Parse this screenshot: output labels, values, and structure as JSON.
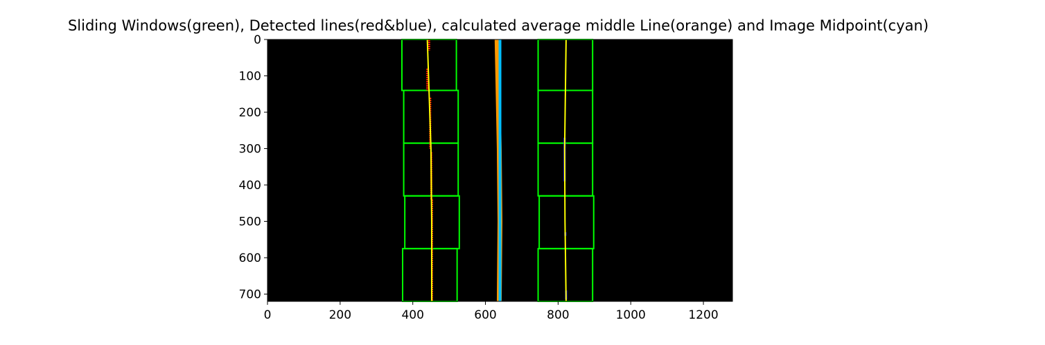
{
  "chart_data": {
    "type": "image",
    "title": "Sliding Windows(green), Detected lines(red&blue), calculated average middle Line(orange) and Image Midpoint(cyan)",
    "xlabel": "",
    "ylabel": "",
    "xlim": [
      0,
      1280
    ],
    "ylim": [
      720,
      0
    ],
    "x_ticks": [
      0,
      200,
      400,
      600,
      800,
      1000,
      1200
    ],
    "y_ticks": [
      0,
      100,
      200,
      300,
      400,
      500,
      600,
      700
    ],
    "grid": false,
    "background": "#000000",
    "colors": {
      "windows": "#00ff00",
      "left_pixels": "#ff2200",
      "right_pixels": "#2222ff",
      "fit_lines": "#ffff00",
      "middle_line": "#ff9900",
      "image_midpoint": "#00bfff"
    },
    "sliding_windows": [
      {
        "x0": 370,
        "x1": 520,
        "y0": 0,
        "y1": 140
      },
      {
        "x0": 375,
        "x1": 525,
        "y0": 140,
        "y1": 285
      },
      {
        "x0": 375,
        "x1": 525,
        "y0": 285,
        "y1": 430
      },
      {
        "x0": 378,
        "x1": 528,
        "y0": 430,
        "y1": 575
      },
      {
        "x0": 372,
        "x1": 522,
        "y0": 575,
        "y1": 720
      },
      {
        "x0": 745,
        "x1": 895,
        "y0": 0,
        "y1": 140
      },
      {
        "x0": 745,
        "x1": 895,
        "y0": 140,
        "y1": 285
      },
      {
        "x0": 745,
        "x1": 895,
        "y0": 285,
        "y1": 430
      },
      {
        "x0": 748,
        "x1": 898,
        "y0": 430,
        "y1": 575
      },
      {
        "x0": 745,
        "x1": 895,
        "y0": 575,
        "y1": 720
      }
    ],
    "left_line": {
      "x": [
        440,
        445,
        450,
        452,
        452
      ],
      "y": [
        0,
        150,
        300,
        500,
        720
      ]
    },
    "right_line": {
      "x": [
        822,
        820,
        818,
        819,
        822
      ],
      "y": [
        0,
        150,
        300,
        500,
        720
      ]
    },
    "middle_line": {
      "x": [
        632,
        635,
        638,
        640,
        638
      ],
      "y": [
        0,
        150,
        300,
        500,
        720
      ]
    },
    "image_midpoint_x": 640,
    "left_pixel_segments": [
      {
        "x": 445,
        "y0": 0,
        "y1": 30
      },
      {
        "x": 440,
        "y0": 80,
        "y1": 140
      },
      {
        "x": 448,
        "y0": 160,
        "y1": 300
      },
      {
        "x": 451,
        "y0": 310,
        "y1": 440
      },
      {
        "x": 453,
        "y0": 440,
        "y1": 720
      }
    ],
    "right_pixel_segments": [
      {
        "x": 818,
        "y0": 270,
        "y1": 390
      },
      {
        "x": 820,
        "y0": 530,
        "y1": 540
      },
      {
        "x": 822,
        "y0": 690,
        "y1": 715
      }
    ]
  }
}
